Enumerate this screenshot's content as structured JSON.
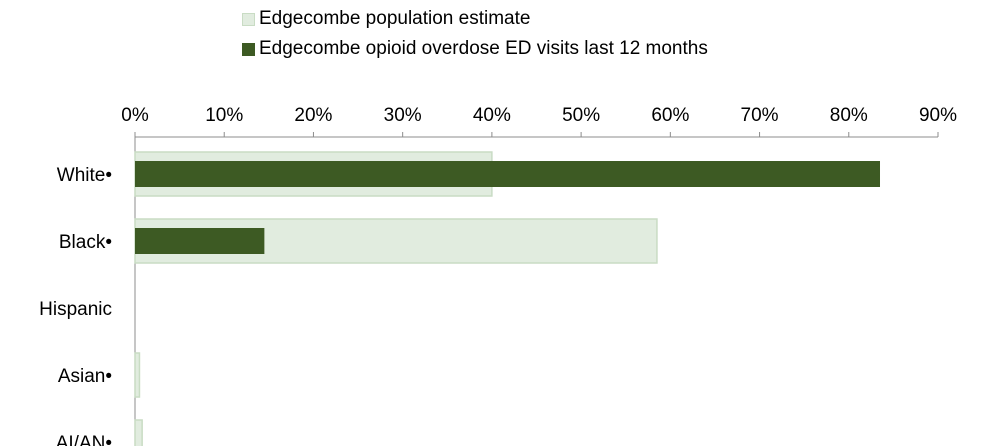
{
  "chart_data": {
    "type": "bar",
    "orientation": "horizontal",
    "categories": [
      "White•",
      "Black•",
      "Hispanic",
      "Asian•",
      "AI/AN•"
    ],
    "series": [
      {
        "name": "Edgecombe population estimate",
        "color": "#e1ecdf",
        "border": "#c9dcc4",
        "values": [
          40,
          58.5,
          0,
          0.5,
          0.8
        ]
      },
      {
        "name": "Edgecombe opioid overdose ED visits last 12 months",
        "color": "#3d5a23",
        "values": [
          83.5,
          14.5,
          0,
          0,
          0
        ]
      }
    ],
    "xlim": [
      0,
      90
    ],
    "xticks": [
      "0%",
      "10%",
      "20%",
      "30%",
      "40%",
      "50%",
      "60%",
      "70%",
      "80%",
      "90%"
    ],
    "xaxis_position": "top",
    "legend_position": "top",
    "grid": false,
    "title": "",
    "xlabel": "",
    "ylabel": ""
  }
}
